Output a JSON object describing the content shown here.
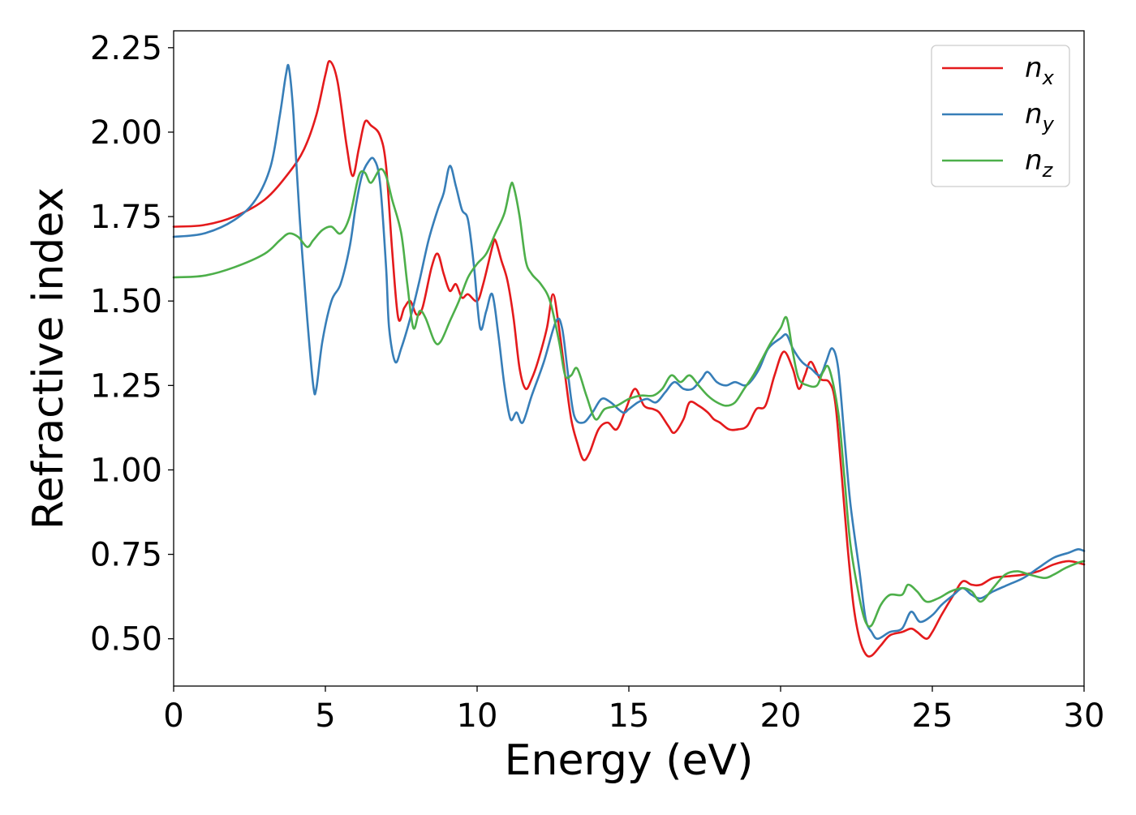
{
  "chart_data": {
    "type": "line",
    "title": "",
    "xlabel": "Energy (eV)",
    "ylabel": "Refractive index",
    "xlim": [
      0,
      30
    ],
    "ylim": [
      0.36,
      2.3
    ],
    "xticks": [
      0,
      5,
      10,
      15,
      20,
      25,
      30
    ],
    "xtick_labels": [
      "0",
      "5",
      "10",
      "15",
      "20",
      "25",
      "30"
    ],
    "yticks": [
      0.5,
      0.75,
      1.0,
      1.25,
      1.5,
      1.75,
      2.0,
      2.25
    ],
    "ytick_labels": [
      "0.50",
      "0.75",
      "1.00",
      "1.25",
      "1.50",
      "1.75",
      "2.00",
      "2.25"
    ],
    "grid": false,
    "legend_position": "top-right",
    "series": [
      {
        "name": "n_x",
        "label_base": "n",
        "label_sub": "x",
        "color": "#e41a1c",
        "points": [
          [
            0,
            1.72
          ],
          [
            1,
            1.725
          ],
          [
            2,
            1.75
          ],
          [
            3,
            1.8
          ],
          [
            3.8,
            1.88
          ],
          [
            4.3,
            1.95
          ],
          [
            4.7,
            2.05
          ],
          [
            5.0,
            2.17
          ],
          [
            5.15,
            2.21
          ],
          [
            5.4,
            2.15
          ],
          [
            5.7,
            1.96
          ],
          [
            5.9,
            1.87
          ],
          [
            6.1,
            1.95
          ],
          [
            6.3,
            2.03
          ],
          [
            6.5,
            2.02
          ],
          [
            6.8,
            1.99
          ],
          [
            7.0,
            1.9
          ],
          [
            7.2,
            1.65
          ],
          [
            7.4,
            1.45
          ],
          [
            7.6,
            1.48
          ],
          [
            7.8,
            1.5
          ],
          [
            8.0,
            1.46
          ],
          [
            8.2,
            1.48
          ],
          [
            8.5,
            1.6
          ],
          [
            8.7,
            1.64
          ],
          [
            8.9,
            1.58
          ],
          [
            9.1,
            1.53
          ],
          [
            9.3,
            1.55
          ],
          [
            9.5,
            1.51
          ],
          [
            9.7,
            1.52
          ],
          [
            10.0,
            1.5
          ],
          [
            10.2,
            1.55
          ],
          [
            10.5,
            1.66
          ],
          [
            10.6,
            1.68
          ],
          [
            10.8,
            1.62
          ],
          [
            11.0,
            1.56
          ],
          [
            11.2,
            1.45
          ],
          [
            11.4,
            1.3
          ],
          [
            11.6,
            1.24
          ],
          [
            11.8,
            1.27
          ],
          [
            12.0,
            1.32
          ],
          [
            12.3,
            1.42
          ],
          [
            12.5,
            1.52
          ],
          [
            12.7,
            1.42
          ],
          [
            12.9,
            1.28
          ],
          [
            13.1,
            1.15
          ],
          [
            13.3,
            1.08
          ],
          [
            13.5,
            1.03
          ],
          [
            13.7,
            1.05
          ],
          [
            14.0,
            1.12
          ],
          [
            14.3,
            1.14
          ],
          [
            14.6,
            1.12
          ],
          [
            14.9,
            1.18
          ],
          [
            15.2,
            1.24
          ],
          [
            15.5,
            1.19
          ],
          [
            15.8,
            1.18
          ],
          [
            16.0,
            1.17
          ],
          [
            16.3,
            1.13
          ],
          [
            16.5,
            1.11
          ],
          [
            16.8,
            1.15
          ],
          [
            17.0,
            1.2
          ],
          [
            17.3,
            1.19
          ],
          [
            17.6,
            1.17
          ],
          [
            17.8,
            1.15
          ],
          [
            18.0,
            1.14
          ],
          [
            18.3,
            1.12
          ],
          [
            18.6,
            1.12
          ],
          [
            18.9,
            1.13
          ],
          [
            19.2,
            1.18
          ],
          [
            19.5,
            1.19
          ],
          [
            19.8,
            1.28
          ],
          [
            20.1,
            1.35
          ],
          [
            20.4,
            1.3
          ],
          [
            20.6,
            1.24
          ],
          [
            20.8,
            1.28
          ],
          [
            21.0,
            1.32
          ],
          [
            21.3,
            1.27
          ],
          [
            21.6,
            1.26
          ],
          [
            21.8,
            1.2
          ],
          [
            22.0,
            1.0
          ],
          [
            22.2,
            0.78
          ],
          [
            22.4,
            0.6
          ],
          [
            22.6,
            0.5
          ],
          [
            22.8,
            0.455
          ],
          [
            23.0,
            0.45
          ],
          [
            23.3,
            0.48
          ],
          [
            23.6,
            0.51
          ],
          [
            24.0,
            0.52
          ],
          [
            24.3,
            0.53
          ],
          [
            24.5,
            0.52
          ],
          [
            24.8,
            0.5
          ],
          [
            25.0,
            0.52
          ],
          [
            25.3,
            0.57
          ],
          [
            25.7,
            0.63
          ],
          [
            26.0,
            0.67
          ],
          [
            26.3,
            0.66
          ],
          [
            26.6,
            0.66
          ],
          [
            27.0,
            0.68
          ],
          [
            27.5,
            0.685
          ],
          [
            28.0,
            0.69
          ],
          [
            28.5,
            0.7
          ],
          [
            29.0,
            0.72
          ],
          [
            29.5,
            0.73
          ],
          [
            30.0,
            0.72
          ]
        ]
      },
      {
        "name": "n_y",
        "label_base": "n",
        "label_sub": "y",
        "color": "#377eb8",
        "points": [
          [
            0,
            1.69
          ],
          [
            1,
            1.7
          ],
          [
            2,
            1.74
          ],
          [
            2.7,
            1.8
          ],
          [
            3.2,
            1.9
          ],
          [
            3.5,
            2.05
          ],
          [
            3.7,
            2.17
          ],
          [
            3.8,
            2.19
          ],
          [
            3.95,
            2.05
          ],
          [
            4.15,
            1.75
          ],
          [
            4.4,
            1.45
          ],
          [
            4.6,
            1.25
          ],
          [
            4.7,
            1.24
          ],
          [
            4.9,
            1.38
          ],
          [
            5.2,
            1.5
          ],
          [
            5.5,
            1.55
          ],
          [
            5.8,
            1.66
          ],
          [
            6.0,
            1.78
          ],
          [
            6.2,
            1.87
          ],
          [
            6.4,
            1.91
          ],
          [
            6.6,
            1.92
          ],
          [
            6.8,
            1.85
          ],
          [
            7.0,
            1.6
          ],
          [
            7.1,
            1.42
          ],
          [
            7.3,
            1.32
          ],
          [
            7.5,
            1.36
          ],
          [
            7.8,
            1.45
          ],
          [
            8.1,
            1.56
          ],
          [
            8.4,
            1.68
          ],
          [
            8.7,
            1.77
          ],
          [
            8.9,
            1.82
          ],
          [
            9.1,
            1.9
          ],
          [
            9.3,
            1.84
          ],
          [
            9.5,
            1.77
          ],
          [
            9.7,
            1.74
          ],
          [
            9.9,
            1.6
          ],
          [
            10.1,
            1.42
          ],
          [
            10.3,
            1.47
          ],
          [
            10.5,
            1.52
          ],
          [
            10.7,
            1.4
          ],
          [
            10.9,
            1.25
          ],
          [
            11.1,
            1.15
          ],
          [
            11.3,
            1.17
          ],
          [
            11.5,
            1.14
          ],
          [
            11.8,
            1.22
          ],
          [
            12.2,
            1.32
          ],
          [
            12.6,
            1.44
          ],
          [
            12.8,
            1.42
          ],
          [
            13.0,
            1.28
          ],
          [
            13.2,
            1.16
          ],
          [
            13.5,
            1.14
          ],
          [
            13.8,
            1.17
          ],
          [
            14.1,
            1.21
          ],
          [
            14.4,
            1.2
          ],
          [
            14.8,
            1.17
          ],
          [
            15.0,
            1.18
          ],
          [
            15.3,
            1.2
          ],
          [
            15.6,
            1.21
          ],
          [
            15.9,
            1.2
          ],
          [
            16.2,
            1.23
          ],
          [
            16.5,
            1.26
          ],
          [
            16.8,
            1.24
          ],
          [
            17.1,
            1.24
          ],
          [
            17.4,
            1.27
          ],
          [
            17.6,
            1.29
          ],
          [
            17.9,
            1.26
          ],
          [
            18.2,
            1.25
          ],
          [
            18.5,
            1.26
          ],
          [
            18.8,
            1.25
          ],
          [
            19.0,
            1.26
          ],
          [
            19.3,
            1.3
          ],
          [
            19.6,
            1.36
          ],
          [
            20.0,
            1.39
          ],
          [
            20.2,
            1.4
          ],
          [
            20.4,
            1.36
          ],
          [
            20.7,
            1.32
          ],
          [
            21.0,
            1.3
          ],
          [
            21.3,
            1.28
          ],
          [
            21.5,
            1.32
          ],
          [
            21.7,
            1.36
          ],
          [
            21.9,
            1.3
          ],
          [
            22.1,
            1.1
          ],
          [
            22.3,
            0.9
          ],
          [
            22.6,
            0.7
          ],
          [
            22.8,
            0.56
          ],
          [
            23.0,
            0.52
          ],
          [
            23.2,
            0.5
          ],
          [
            23.6,
            0.52
          ],
          [
            24.0,
            0.53
          ],
          [
            24.3,
            0.58
          ],
          [
            24.6,
            0.55
          ],
          [
            25.0,
            0.57
          ],
          [
            25.3,
            0.6
          ],
          [
            25.7,
            0.63
          ],
          [
            26.0,
            0.65
          ],
          [
            26.3,
            0.63
          ],
          [
            26.6,
            0.62
          ],
          [
            27.0,
            0.64
          ],
          [
            27.5,
            0.66
          ],
          [
            28.0,
            0.68
          ],
          [
            28.5,
            0.71
          ],
          [
            29.0,
            0.74
          ],
          [
            29.5,
            0.755
          ],
          [
            29.8,
            0.765
          ],
          [
            30.0,
            0.76
          ]
        ]
      },
      {
        "name": "n_z",
        "label_base": "n",
        "label_sub": "z",
        "color": "#4daf4a",
        "points": [
          [
            0,
            1.57
          ],
          [
            1,
            1.575
          ],
          [
            2,
            1.6
          ],
          [
            3,
            1.64
          ],
          [
            3.5,
            1.68
          ],
          [
            3.8,
            1.7
          ],
          [
            4.1,
            1.69
          ],
          [
            4.4,
            1.66
          ],
          [
            4.6,
            1.68
          ],
          [
            4.9,
            1.71
          ],
          [
            5.2,
            1.72
          ],
          [
            5.5,
            1.7
          ],
          [
            5.8,
            1.75
          ],
          [
            6.1,
            1.87
          ],
          [
            6.3,
            1.88
          ],
          [
            6.5,
            1.85
          ],
          [
            6.8,
            1.89
          ],
          [
            7.0,
            1.87
          ],
          [
            7.2,
            1.8
          ],
          [
            7.5,
            1.7
          ],
          [
            7.7,
            1.55
          ],
          [
            7.9,
            1.42
          ],
          [
            8.1,
            1.47
          ],
          [
            8.3,
            1.45
          ],
          [
            8.6,
            1.38
          ],
          [
            8.8,
            1.38
          ],
          [
            9.1,
            1.44
          ],
          [
            9.4,
            1.5
          ],
          [
            9.7,
            1.57
          ],
          [
            10.0,
            1.61
          ],
          [
            10.3,
            1.64
          ],
          [
            10.6,
            1.7
          ],
          [
            10.9,
            1.76
          ],
          [
            11.1,
            1.84
          ],
          [
            11.2,
            1.84
          ],
          [
            11.4,
            1.75
          ],
          [
            11.6,
            1.62
          ],
          [
            11.8,
            1.58
          ],
          [
            12.1,
            1.55
          ],
          [
            12.4,
            1.5
          ],
          [
            12.7,
            1.38
          ],
          [
            12.9,
            1.28
          ],
          [
            13.1,
            1.28
          ],
          [
            13.3,
            1.3
          ],
          [
            13.6,
            1.22
          ],
          [
            13.9,
            1.15
          ],
          [
            14.2,
            1.18
          ],
          [
            14.6,
            1.19
          ],
          [
            15.0,
            1.21
          ],
          [
            15.4,
            1.22
          ],
          [
            15.8,
            1.22
          ],
          [
            16.1,
            1.24
          ],
          [
            16.4,
            1.28
          ],
          [
            16.7,
            1.26
          ],
          [
            17.0,
            1.28
          ],
          [
            17.3,
            1.25
          ],
          [
            17.6,
            1.22
          ],
          [
            17.9,
            1.2
          ],
          [
            18.2,
            1.19
          ],
          [
            18.5,
            1.2
          ],
          [
            18.8,
            1.24
          ],
          [
            19.1,
            1.28
          ],
          [
            19.4,
            1.33
          ],
          [
            19.7,
            1.38
          ],
          [
            20.0,
            1.42
          ],
          [
            20.2,
            1.45
          ],
          [
            20.4,
            1.35
          ],
          [
            20.6,
            1.27
          ],
          [
            20.9,
            1.25
          ],
          [
            21.2,
            1.25
          ],
          [
            21.4,
            1.29
          ],
          [
            21.6,
            1.3
          ],
          [
            21.9,
            1.17
          ],
          [
            22.1,
            0.98
          ],
          [
            22.3,
            0.78
          ],
          [
            22.6,
            0.62
          ],
          [
            22.8,
            0.55
          ],
          [
            23.0,
            0.54
          ],
          [
            23.3,
            0.6
          ],
          [
            23.6,
            0.63
          ],
          [
            24.0,
            0.63
          ],
          [
            24.2,
            0.66
          ],
          [
            24.5,
            0.64
          ],
          [
            24.8,
            0.61
          ],
          [
            25.2,
            0.62
          ],
          [
            25.6,
            0.64
          ],
          [
            26.0,
            0.65
          ],
          [
            26.3,
            0.64
          ],
          [
            26.6,
            0.61
          ],
          [
            27.0,
            0.65
          ],
          [
            27.4,
            0.69
          ],
          [
            27.8,
            0.7
          ],
          [
            28.2,
            0.69
          ],
          [
            28.7,
            0.68
          ],
          [
            29.0,
            0.69
          ],
          [
            29.4,
            0.71
          ],
          [
            29.8,
            0.725
          ],
          [
            30.0,
            0.73
          ]
        ]
      }
    ]
  }
}
